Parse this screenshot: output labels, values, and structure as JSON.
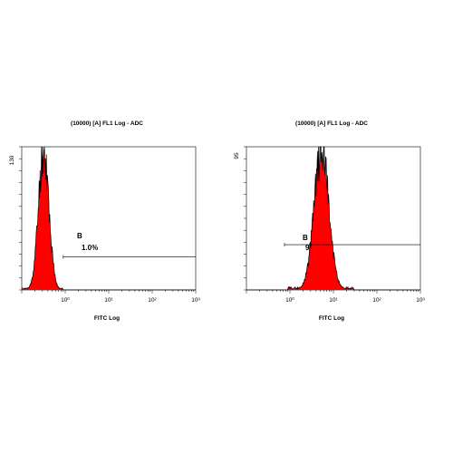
{
  "chart_data": [
    {
      "type": "area",
      "title": "(10000) [A] FL1 Log - ADC",
      "xlabel": "FITC Log",
      "ylabel": "",
      "x_scale": "log",
      "xlim": [
        0.1,
        1000
      ],
      "ylim": [
        0,
        130
      ],
      "y_tick_labels": [
        "130"
      ],
      "x_tick_labels": [
        "10⁰",
        "10¹",
        "10²",
        "10³"
      ],
      "x_tick_values": [
        1,
        10,
        100,
        1000
      ],
      "fill_color": "#ff0000",
      "outline_color": "#000000",
      "grid": false,
      "histogram": {
        "peak_x": 0.32,
        "log_sigma": 0.12,
        "peak_count": 128,
        "left_tail_x": 0.1,
        "right_tail_x": 0.9
      },
      "gate": {
        "name": "B",
        "percent_label": "1.0%",
        "x_start": 0.9,
        "x_end": 1000,
        "level": 30
      }
    },
    {
      "type": "area",
      "title": "(10000) [A] FL1 Log - ADC",
      "xlabel": "FITC Log",
      "ylabel": "",
      "x_scale": "log",
      "xlim": [
        0.1,
        1000
      ],
      "ylim": [
        0,
        95
      ],
      "y_tick_labels": [
        "95"
      ],
      "x_tick_labels": [
        "10⁰",
        "10¹",
        "10²",
        "10³"
      ],
      "x_tick_values": [
        1,
        10,
        100,
        1000
      ],
      "fill_color": "#ff0000",
      "outline_color": "#000000",
      "grid": false,
      "histogram": {
        "peak_x": 5.3,
        "log_sigma": 0.17,
        "peak_count": 92,
        "left_tail_x": 0.9,
        "right_tail_x": 30
      },
      "gate": {
        "name": "B",
        "percent_label": "98.1%",
        "x_start": 0.75,
        "x_end": 1000,
        "level": 30
      }
    }
  ]
}
